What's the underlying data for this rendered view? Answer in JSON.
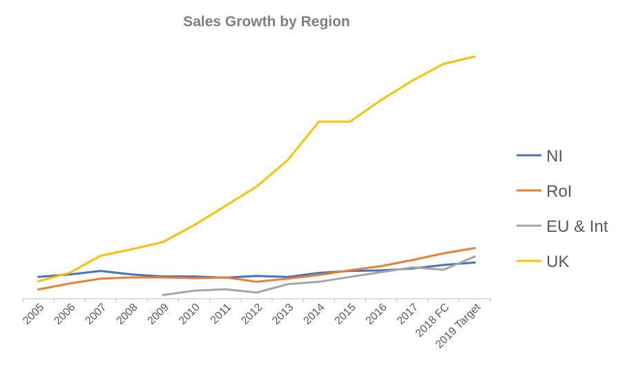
{
  "chart_data": {
    "type": "line",
    "title": "Sales Growth by Region",
    "xlabel": "",
    "ylabel": "",
    "ylim": [
      0,
      100
    ],
    "categories": [
      "2005",
      "2006",
      "2007",
      "2008",
      "2009",
      "2010",
      "2011",
      "2012",
      "2013",
      "2014",
      "2015",
      "2016",
      "2017",
      "2018 FC",
      "2019 Target"
    ],
    "series": [
      {
        "name": "NI",
        "color": "#4472c4",
        "values": [
          8.5,
          9.5,
          11,
          9.5,
          8.7,
          8.7,
          8.2,
          8.9,
          8.5,
          10.2,
          11,
          11.2,
          12,
          13.5,
          14.5
        ]
      },
      {
        "name": "RoI",
        "color": "#ed7d31",
        "values": [
          3.3,
          5.8,
          7.8,
          8.3,
          8.3,
          8.0,
          8.3,
          6.5,
          7.8,
          9.3,
          11.3,
          13.0,
          15.5,
          18.3,
          20.5
        ]
      },
      {
        "name": "EU & Int",
        "color": "#a5a5a5",
        "values": [
          null,
          null,
          null,
          null,
          1.0,
          2.8,
          3.4,
          2.0,
          5.5,
          6.5,
          8.5,
          10.5,
          12.5,
          11.5,
          17.0
        ]
      },
      {
        "name": "UK",
        "color": "#ffc000",
        "values": [
          6.7,
          10.2,
          17.3,
          20.0,
          23.0,
          30.0,
          38.0,
          46.0,
          57.0,
          73.0,
          73.0,
          82.0,
          90.0,
          97.0,
          100.0
        ]
      }
    ],
    "legend_position": "right",
    "grid": false
  }
}
